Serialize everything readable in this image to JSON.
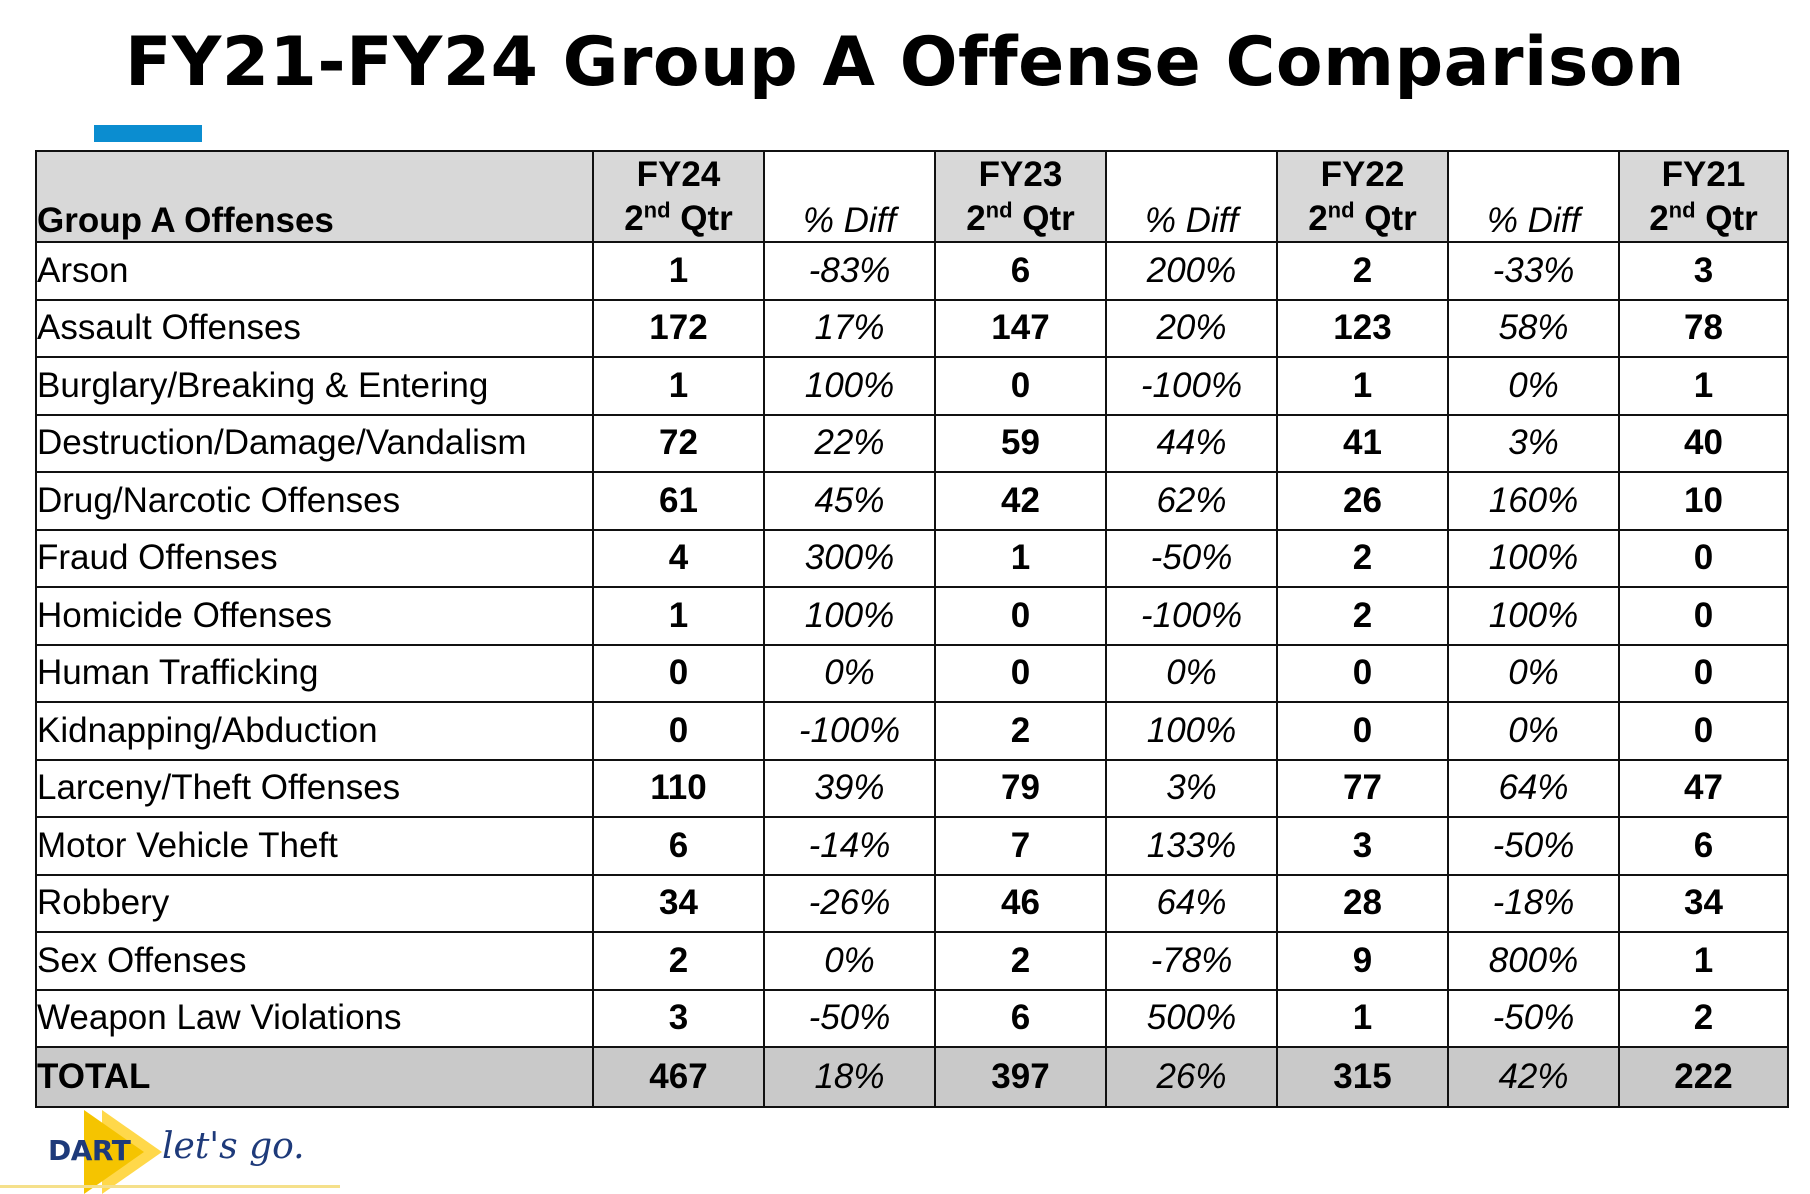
{
  "title": "FY21-FY24 Group A Offense Comparison",
  "colors": {
    "accent_bar": "#0b8dd0",
    "header_bg": "#d8d8d8",
    "total_bg": "#c9c9c9",
    "logo_yellow": "#f5c400",
    "logo_navy": "#1e3a7a"
  },
  "table": {
    "label_header": "Group A Offenses",
    "columns": [
      {
        "year": "FY24",
        "q_num": "2",
        "q_sup": "nd",
        "q_label": "Qtr"
      },
      {
        "diff": "% Diff"
      },
      {
        "year": "FY23",
        "q_num": "2",
        "q_sup": "nd",
        "q_label": "Qtr"
      },
      {
        "diff": "% Diff"
      },
      {
        "year": "FY22",
        "q_num": "2",
        "q_sup": "nd",
        "q_label": "Qtr"
      },
      {
        "diff": "% Diff"
      },
      {
        "year": "FY21",
        "q_num": "2",
        "q_sup": "nd",
        "q_label": "Qtr"
      }
    ],
    "rows": [
      {
        "name": "Arson",
        "fy24": "1",
        "d1": "-83%",
        "fy23": "6",
        "d2": "200%",
        "fy22": "2",
        "d3": "-33%",
        "fy21": "3"
      },
      {
        "name": "Assault Offenses",
        "fy24": "172",
        "d1": "17%",
        "fy23": "147",
        "d2": "20%",
        "fy22": "123",
        "d3": "58%",
        "fy21": "78"
      },
      {
        "name": "Burglary/Breaking & Entering",
        "fy24": "1",
        "d1": "100%",
        "fy23": "0",
        "d2": "-100%",
        "fy22": "1",
        "d3": "0%",
        "fy21": "1"
      },
      {
        "name": "Destruction/Damage/Vandalism",
        "fy24": "72",
        "d1": "22%",
        "fy23": "59",
        "d2": "44%",
        "fy22": "41",
        "d3": "3%",
        "fy21": "40"
      },
      {
        "name": "Drug/Narcotic Offenses",
        "fy24": "61",
        "d1": "45%",
        "fy23": "42",
        "d2": "62%",
        "fy22": "26",
        "d3": "160%",
        "fy21": "10"
      },
      {
        "name": "Fraud Offenses",
        "fy24": "4",
        "d1": "300%",
        "fy23": "1",
        "d2": "-50%",
        "fy22": "2",
        "d3": "100%",
        "fy21": "0"
      },
      {
        "name": "Homicide Offenses",
        "fy24": "1",
        "d1": "100%",
        "fy23": "0",
        "d2": "-100%",
        "fy22": "2",
        "d3": "100%",
        "fy21": "0"
      },
      {
        "name": "Human Trafficking",
        "fy24": "0",
        "d1": "0%",
        "fy23": "0",
        "d2": "0%",
        "fy22": "0",
        "d3": "0%",
        "fy21": "0"
      },
      {
        "name": "Kidnapping/Abduction",
        "fy24": "0",
        "d1": "-100%",
        "fy23": "2",
        "d2": "100%",
        "fy22": "0",
        "d3": "0%",
        "fy21": "0"
      },
      {
        "name": "Larceny/Theft Offenses",
        "fy24": "110",
        "d1": "39%",
        "fy23": "79",
        "d2": "3%",
        "fy22": "77",
        "d3": "64%",
        "fy21": "47"
      },
      {
        "name": "Motor Vehicle Theft",
        "fy24": "6",
        "d1": "-14%",
        "fy23": "7",
        "d2": "133%",
        "fy22": "3",
        "d3": "-50%",
        "fy21": "6"
      },
      {
        "name": "Robbery",
        "fy24": "34",
        "d1": "-26%",
        "fy23": "46",
        "d2": "64%",
        "fy22": "28",
        "d3": "-18%",
        "fy21": "34"
      },
      {
        "name": "Sex Offenses",
        "fy24": "2",
        "d1": "0%",
        "fy23": "2",
        "d2": "-78%",
        "fy22": "9",
        "d3": "800%",
        "fy21": "1"
      },
      {
        "name": "Weapon Law Violations",
        "fy24": "3",
        "d1": "-50%",
        "fy23": "6",
        "d2": "500%",
        "fy22": "1",
        "d3": "-50%",
        "fy21": "2"
      }
    ],
    "total": {
      "name": "TOTAL",
      "fy24": "467",
      "d1": "18%",
      "fy23": "397",
      "d2": "26%",
      "fy22": "315",
      "d3": "42%",
      "fy21": "222"
    }
  },
  "logo": {
    "word": "DART",
    "tagline": "let's go."
  }
}
